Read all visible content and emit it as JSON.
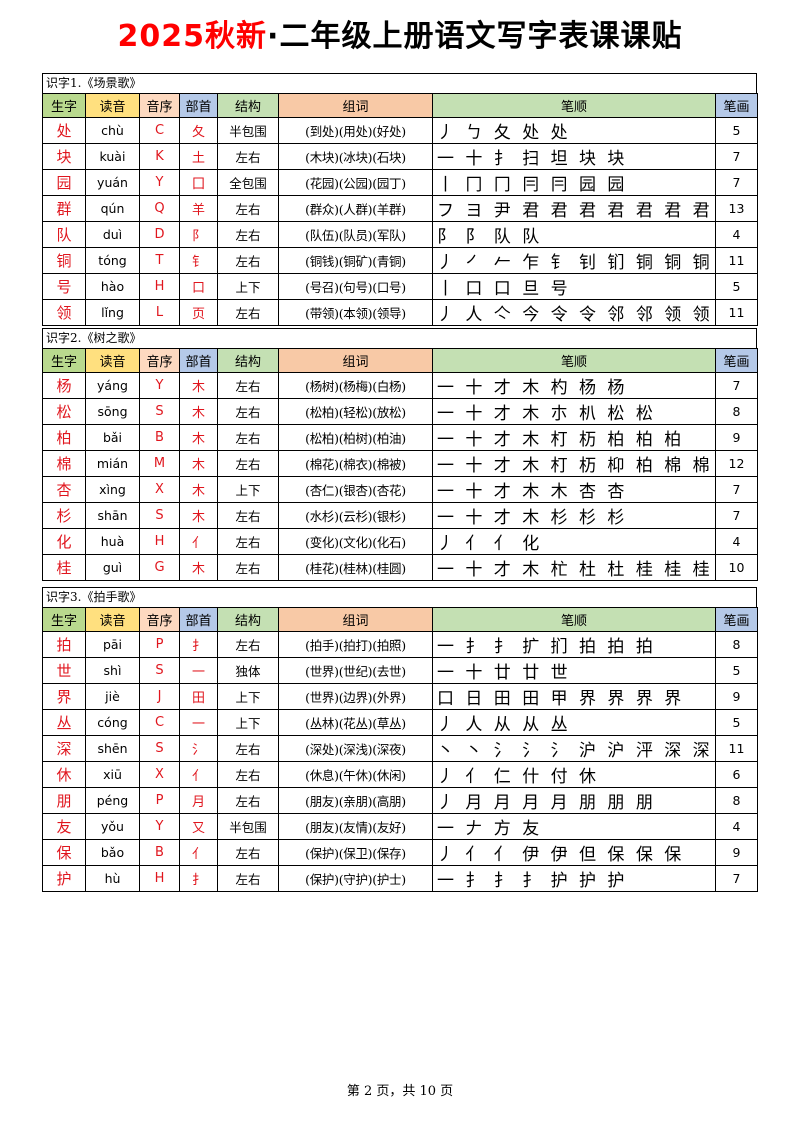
{
  "title": {
    "red": "2025秋新",
    "black": "·二年级上册语文写字表课课贴"
  },
  "headers": {
    "char": "生字",
    "pinyin": "读音",
    "order": "音序",
    "radical": "部首",
    "structure": "结构",
    "words": "组词",
    "strokes": "笔顺",
    "count": "笔画"
  },
  "sections": [
    {
      "title": "识字1.《场景歌》",
      "rows": [
        {
          "char": "处",
          "pinyin": "chù",
          "order": "C",
          "radical": "夂",
          "structure": "半包围",
          "words": "(到处)(用处)(好处)",
          "strokes": "丿 ㄅ 夂 处 处",
          "count": "5"
        },
        {
          "char": "块",
          "pinyin": "kuài",
          "order": "K",
          "radical": "土",
          "structure": "左右",
          "words": "(木块)(冰块)(石块)",
          "strokes": "一 十 扌 扫 坦 块 块",
          "count": "7"
        },
        {
          "char": "园",
          "pinyin": "yuán",
          "order": "Y",
          "radical": "囗",
          "structure": "全包围",
          "words": "(花园)(公园)(园丁)",
          "strokes": "丨 冂 冂 冃 冃 园 园",
          "count": "7"
        },
        {
          "char": "群",
          "pinyin": "qún",
          "order": "Q",
          "radical": "羊",
          "structure": "左右",
          "words": "(群众)(人群)(羊群)",
          "strokes": "フ ヨ 尹 君 君 君 君 君 君 君 君 君 群",
          "count": "13"
        },
        {
          "char": "队",
          "pinyin": "duì",
          "order": "D",
          "radical": "阝",
          "structure": "左右",
          "words": "(队伍)(队员)(军队)",
          "strokes": "阝 阝 队 队",
          "count": "4"
        },
        {
          "char": "铜",
          "pinyin": "tóng",
          "order": "T",
          "radical": "钅",
          "structure": "左右",
          "words": "(铜钱)(铜矿)(青铜)",
          "strokes": "丿 ㇒ 𠂉 乍 钅 钊 钔 铜 铜 铜 铜",
          "count": "11"
        },
        {
          "char": "号",
          "pinyin": "hào",
          "order": "H",
          "radical": "口",
          "structure": "上下",
          "words": "(号召)(句号)(口号)",
          "strokes": "丨 口 口 旦 号",
          "count": "5"
        },
        {
          "char": "领",
          "pinyin": "lǐng",
          "order": "L",
          "radical": "页",
          "structure": "左右",
          "words": "(带领)(本领)(领导)",
          "strokes": "丿 人 亽 今 令 令 邻 邻 领 领 领",
          "count": "11"
        }
      ]
    },
    {
      "title": "识字2.《树之歌》",
      "rows": [
        {
          "char": "杨",
          "pinyin": "yáng",
          "order": "Y",
          "radical": "木",
          "structure": "左右",
          "words": "(杨树)(杨梅)(白杨)",
          "strokes": "一 十 才 木 杓 杨 杨",
          "count": "7"
        },
        {
          "char": "松",
          "pinyin": "sōng",
          "order": "S",
          "radical": "木",
          "structure": "左右",
          "words": "(松柏)(轻松)(放松)",
          "strokes": "一 十 才 木 朩 朳 松 松",
          "count": "8"
        },
        {
          "char": "柏",
          "pinyin": "bǎi",
          "order": "B",
          "radical": "木",
          "structure": "左右",
          "words": "(松柏)(柏树)(柏油)",
          "strokes": "一 十 才 木 朾 杤 柏 柏 柏",
          "count": "9"
        },
        {
          "char": "棉",
          "pinyin": "mián",
          "order": "M",
          "radical": "木",
          "structure": "左右",
          "words": "(棉花)(棉衣)(棉被)",
          "strokes": "一 十 才 木 朾 杤 枊 柏 棉 棉 棉 棉",
          "count": "12"
        },
        {
          "char": "杏",
          "pinyin": "xìng",
          "order": "X",
          "radical": "木",
          "structure": "上下",
          "words": "(杏仁)(银杏)(杏花)",
          "strokes": "一 十 才 木 木 杏 杏",
          "count": "7"
        },
        {
          "char": "杉",
          "pinyin": "shān",
          "order": "S",
          "radical": "木",
          "structure": "左右",
          "words": "(水杉)(云杉)(银杉)",
          "strokes": "一 十 才 木 杉 杉 杉",
          "count": "7"
        },
        {
          "char": "化",
          "pinyin": "huà",
          "order": "H",
          "radical": "亻",
          "structure": "左右",
          "words": "(变化)(文化)(化石)",
          "strokes": "丿 亻 亻 化",
          "count": "4"
        },
        {
          "char": "桂",
          "pinyin": "guì",
          "order": "G",
          "radical": "木",
          "structure": "左右",
          "words": "(桂花)(桂林)(桂圆)",
          "strokes": "一 十 才 木 杧 杜 杜 桂 桂 桂",
          "count": "10"
        }
      ]
    },
    {
      "title": "识字3.《拍手歌》",
      "rows": [
        {
          "char": "拍",
          "pinyin": "pāi",
          "order": "P",
          "radical": "扌",
          "structure": "左右",
          "words": "(拍手)(拍打)(拍照)",
          "strokes": "一 扌 扌 扩 扪 拍 拍 拍",
          "count": "8"
        },
        {
          "char": "世",
          "pinyin": "shì",
          "order": "S",
          "radical": "一",
          "structure": "独体",
          "words": "(世界)(世纪)(去世)",
          "strokes": "一 十 廿 廿 世",
          "count": "5"
        },
        {
          "char": "界",
          "pinyin": "jiè",
          "order": "J",
          "radical": "田",
          "structure": "上下",
          "words": "(世界)(边界)(外界)",
          "strokes": "口 日 田 田 甲 界 界 界 界",
          "count": "9"
        },
        {
          "char": "丛",
          "pinyin": "cóng",
          "order": "C",
          "radical": "一",
          "structure": "上下",
          "words": "(丛林)(花丛)(草丛)",
          "strokes": "丿 人 从 从 丛",
          "count": "5"
        },
        {
          "char": "深",
          "pinyin": "shēn",
          "order": "S",
          "radical": "氵",
          "structure": "左右",
          "words": "(深处)(深浅)(深夜)",
          "strokes": "丶 丶 氵 氵 氵 沪 沪 泙 深 深 深",
          "count": "11"
        },
        {
          "char": "休",
          "pinyin": "xiū",
          "order": "X",
          "radical": "亻",
          "structure": "左右",
          "words": "(休息)(午休)(休闲)",
          "strokes": "丿 亻 仁 什 付 休",
          "count": "6"
        },
        {
          "char": "朋",
          "pinyin": "péng",
          "order": "P",
          "radical": "月",
          "structure": "左右",
          "words": "(朋友)(亲朋)(高朋)",
          "strokes": "丿 月 月 月 月 朋 朋 朋",
          "count": "8"
        },
        {
          "char": "友",
          "pinyin": "yǒu",
          "order": "Y",
          "radical": "又",
          "structure": "半包围",
          "words": "(朋友)(友情)(友好)",
          "strokes": "一 𠂇 方 友",
          "count": "4"
        },
        {
          "char": "保",
          "pinyin": "bǎo",
          "order": "B",
          "radical": "亻",
          "structure": "左右",
          "words": "(保护)(保卫)(保存)",
          "strokes": "丿 亻 亻 伊 伊 但 保 保 保",
          "count": "9"
        },
        {
          "char": "护",
          "pinyin": "hù",
          "order": "H",
          "radical": "扌",
          "structure": "左右",
          "words": "(保护)(守护)(护士)",
          "strokes": "一 扌 扌 扌 护 护 护",
          "count": "7"
        }
      ]
    }
  ],
  "page_number": "第 2 页，共 10 页"
}
